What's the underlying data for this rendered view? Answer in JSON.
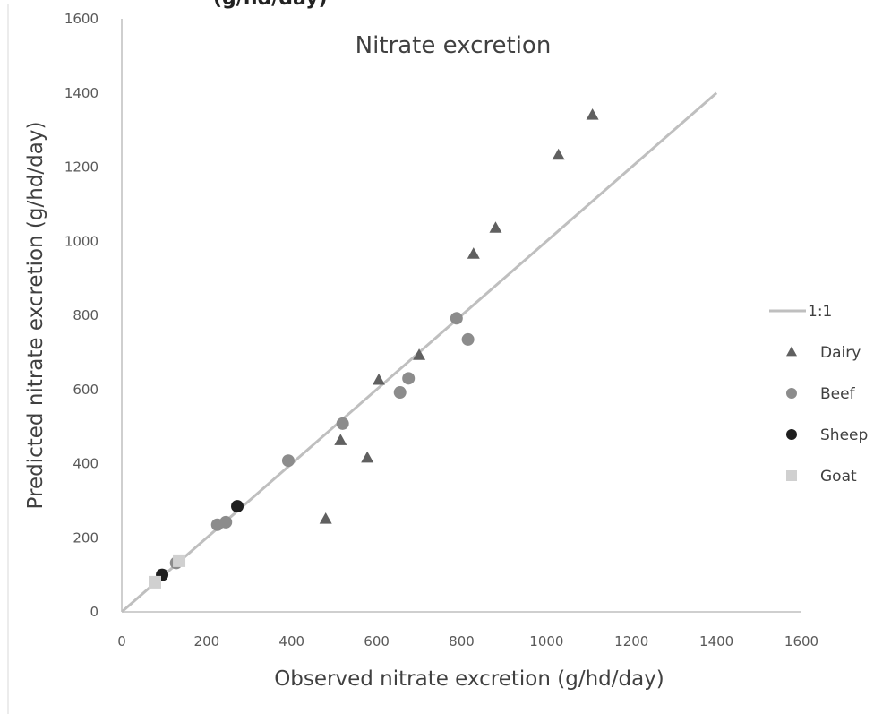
{
  "chart_data": {
    "type": "scatter",
    "title": "Nitrate excretion",
    "xlabel": "Observed nitrate excretion (g/hd/day)",
    "ylabel": "Predicted nitrate excretion (g/hd/day)",
    "xlim": [
      0,
      1600
    ],
    "ylim": [
      0,
      1600
    ],
    "xticks": [
      0,
      200,
      400,
      600,
      800,
      1000,
      1200,
      1400,
      1600
    ],
    "yticks": [
      0,
      200,
      400,
      600,
      800,
      1000,
      1200,
      1400,
      1600
    ],
    "grid": false,
    "legend_position": "right",
    "reference_line": {
      "name": "1:1",
      "x": [
        0,
        1400
      ],
      "y": [
        0,
        1400
      ],
      "color": "#bfbfbf"
    },
    "series": [
      {
        "name": "Dairy",
        "marker": "triangle",
        "color": "#606060",
        "points": [
          [
            480,
            250
          ],
          [
            515,
            462
          ],
          [
            578,
            415
          ],
          [
            605,
            625
          ],
          [
            700,
            692
          ],
          [
            828,
            965
          ],
          [
            880,
            1035
          ],
          [
            1028,
            1232
          ],
          [
            1108,
            1340
          ]
        ]
      },
      {
        "name": "Beef",
        "marker": "circle",
        "color": "#8c8c8c",
        "points": [
          [
            128,
            132
          ],
          [
            225,
            235
          ],
          [
            245,
            242
          ],
          [
            392,
            408
          ],
          [
            520,
            508
          ],
          [
            655,
            592
          ],
          [
            675,
            630
          ],
          [
            788,
            792
          ],
          [
            815,
            735
          ]
        ]
      },
      {
        "name": "Sheep",
        "marker": "circle",
        "color": "#1f1f1f",
        "points": [
          [
            95,
            100
          ],
          [
            272,
            285
          ]
        ]
      },
      {
        "name": "Goat",
        "marker": "square",
        "color": "#d0d0d0",
        "points": [
          [
            78,
            80
          ],
          [
            135,
            138
          ]
        ]
      }
    ]
  }
}
